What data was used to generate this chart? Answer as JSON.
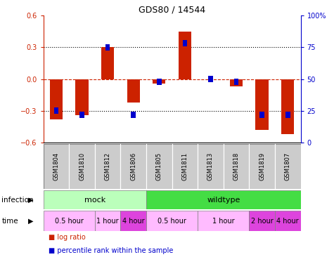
{
  "title": "GDS80 / 14544",
  "samples": [
    "GSM1804",
    "GSM1810",
    "GSM1812",
    "GSM1806",
    "GSM1805",
    "GSM1811",
    "GSM1813",
    "GSM1818",
    "GSM1819",
    "GSM1807"
  ],
  "log_ratio": [
    -0.38,
    -0.34,
    0.3,
    -0.22,
    -0.04,
    0.45,
    0.0,
    -0.07,
    -0.48,
    -0.52
  ],
  "percentile": [
    25,
    22,
    75,
    22,
    48,
    78,
    50,
    48,
    22,
    22
  ],
  "ylim_min": -0.6,
  "ylim_max": 0.6,
  "yticks_left": [
    -0.6,
    -0.3,
    0.0,
    0.3,
    0.6
  ],
  "yticks_right": [
    0,
    25,
    50,
    75,
    100
  ],
  "bar_color_red": "#CC2200",
  "bar_color_blue": "#0000CC",
  "bar_width": 0.5,
  "blue_bar_width": 0.18,
  "blue_bar_height": 0.06,
  "infection_groups": [
    {
      "label": "mock",
      "start": 0,
      "end": 4,
      "color": "#BBFFBB"
    },
    {
      "label": "wildtype",
      "start": 4,
      "end": 10,
      "color": "#44DD44"
    }
  ],
  "time_groups": [
    {
      "label": "0.5 hour",
      "start": 0,
      "end": 2,
      "color": "#FFBBFF"
    },
    {
      "label": "1 hour",
      "start": 2,
      "end": 3,
      "color": "#FFBBFF"
    },
    {
      "label": "4 hour",
      "start": 3,
      "end": 4,
      "color": "#DD44DD"
    },
    {
      "label": "0.5 hour",
      "start": 4,
      "end": 6,
      "color": "#FFBBFF"
    },
    {
      "label": "1 hour",
      "start": 6,
      "end": 8,
      "color": "#FFBBFF"
    },
    {
      "label": "2 hour",
      "start": 8,
      "end": 9,
      "color": "#DD44DD"
    },
    {
      "label": "4 hour",
      "start": 9,
      "end": 10,
      "color": "#DD44DD"
    }
  ],
  "legend_red": "log ratio",
  "legend_blue": "percentile rank within the sample",
  "bg_color": "#FFFFFF",
  "sample_bg": "#CCCCCC"
}
